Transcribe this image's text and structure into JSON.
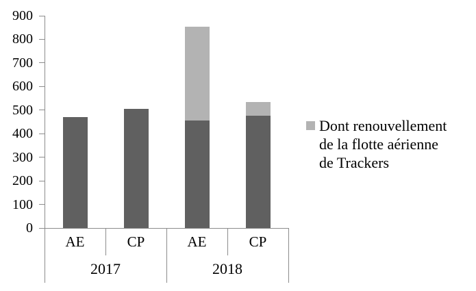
{
  "chart_data": {
    "type": "bar",
    "stacked": true,
    "title": "",
    "categories": [
      "AE",
      "CP",
      "AE",
      "CP"
    ],
    "group_labels": [
      {
        "label": "2017",
        "span": [
          0,
          1
        ]
      },
      {
        "label": "2018",
        "span": [
          2,
          3
        ]
      }
    ],
    "series": [
      {
        "name": "",
        "color": "#606060",
        "values": [
          470,
          505,
          455,
          475
        ],
        "show_in_legend": false
      },
      {
        "name": "Dont renouvellement de la flotte aérienne de Trackers",
        "color": "#b3b3b3",
        "values": [
          0,
          0,
          400,
          60
        ],
        "show_in_legend": true
      }
    ],
    "totals": [
      470,
      505,
      855,
      535
    ],
    "ylim": [
      0,
      900
    ],
    "yticks": [
      0,
      100,
      200,
      300,
      400,
      500,
      600,
      700,
      800,
      900
    ],
    "grid": false,
    "legend_position": "right",
    "xlabel": "",
    "ylabel": ""
  },
  "legend": {
    "swatch_color": "#b3b3b3",
    "label": "Dont renouvellement de la flotte aérienne de Trackers",
    "lines": [
      "Dont renouvellement",
      "de la flotte aérienne",
      "de Trackers"
    ]
  },
  "colors": {
    "bar_dark": "#606060",
    "bar_light": "#b3b3b3",
    "axis_line": "#8c8c8c",
    "text": "#000000",
    "background": "#ffffff"
  }
}
